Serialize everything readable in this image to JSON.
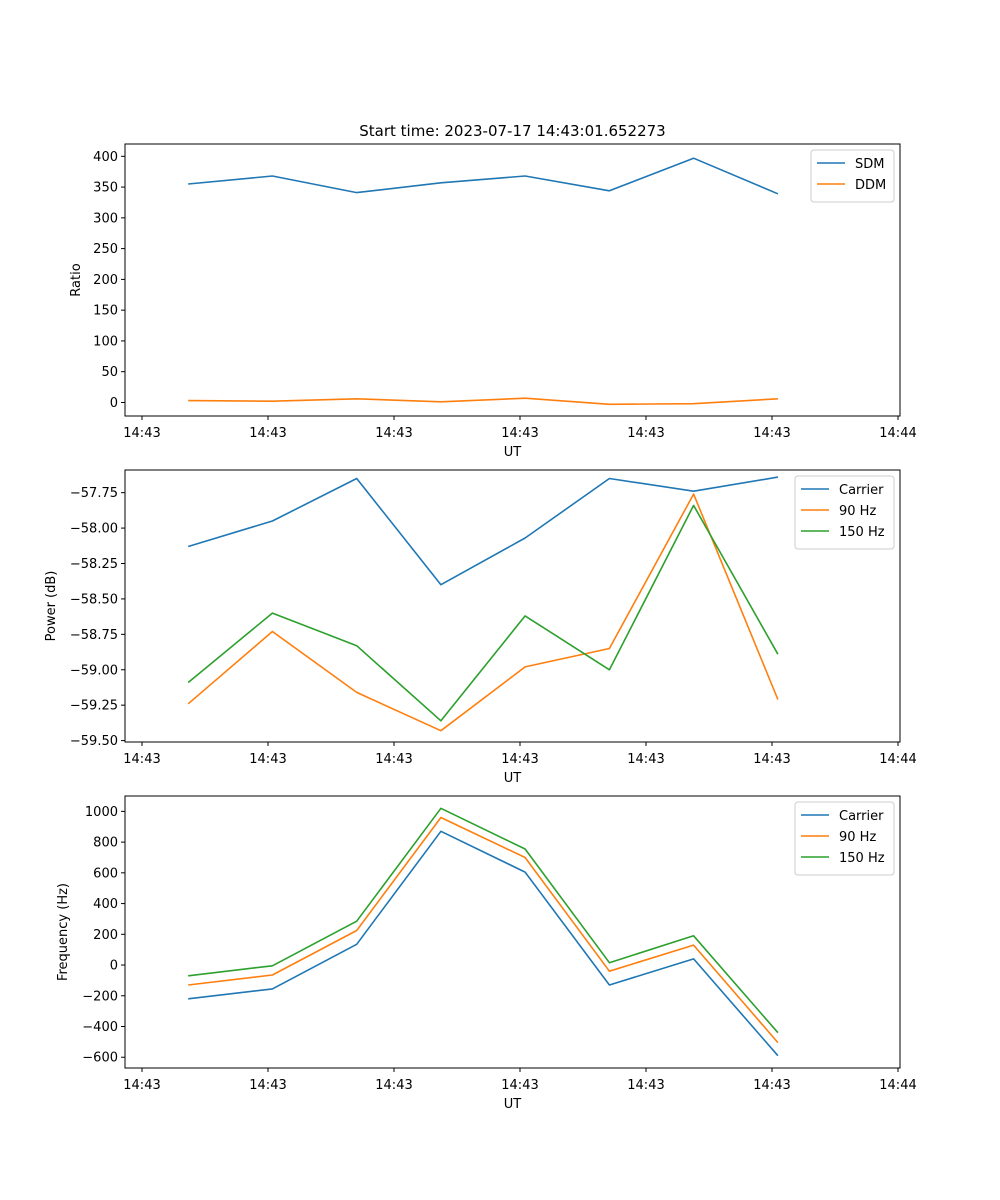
{
  "chart_data": [
    {
      "type": "line",
      "title": "Start time: 2023-07-17 14:43:01.652273",
      "xlabel": "UT",
      "ylabel": "Ratio",
      "x_tick_labels": [
        "14:43",
        "14:43",
        "14:43",
        "14:43",
        "14:43",
        "14:43",
        "14:44"
      ],
      "x_sample_index": [
        0,
        1,
        2,
        3,
        4,
        5,
        6,
        7
      ],
      "xlim": [
        -0.75,
        8.45
      ],
      "ylim": [
        -22,
        420
      ],
      "y_ticks": [
        0,
        50,
        100,
        150,
        200,
        250,
        300,
        350,
        400
      ],
      "legend_position": "top-right",
      "series": [
        {
          "name": "SDM",
          "color": "#1f77b4",
          "values": [
            355,
            368,
            341,
            357,
            368,
            344,
            397,
            339
          ]
        },
        {
          "name": "DDM",
          "color": "#ff7f0e",
          "values": [
            3,
            2,
            6,
            1,
            7,
            -3,
            -2,
            6
          ]
        }
      ]
    },
    {
      "type": "line",
      "title": "",
      "xlabel": "UT",
      "ylabel": "Power (dB)",
      "x_tick_labels": [
        "14:43",
        "14:43",
        "14:43",
        "14:43",
        "14:43",
        "14:43",
        "14:44"
      ],
      "x_sample_index": [
        0,
        1,
        2,
        3,
        4,
        5,
        6,
        7
      ],
      "xlim": [
        -0.75,
        8.45
      ],
      "ylim": [
        -59.51,
        -57.59
      ],
      "y_ticks": [
        -59.5,
        -59.25,
        -59.0,
        -58.75,
        -58.5,
        -58.25,
        -58.0,
        -57.75
      ],
      "y_tick_labels": [
        "−59.50",
        "−59.25",
        "−59.00",
        "−58.75",
        "−58.50",
        "−58.25",
        "−58.00",
        "−57.75"
      ],
      "legend_position": "top-right",
      "series": [
        {
          "name": "Carrier",
          "color": "#1f77b4",
          "values": [
            -58.13,
            -57.95,
            -57.65,
            -58.4,
            -58.07,
            -57.65,
            -57.74,
            -57.64
          ]
        },
        {
          "name": "90 Hz",
          "color": "#ff7f0e",
          "values": [
            -59.24,
            -58.73,
            -59.16,
            -59.43,
            -58.98,
            -58.85,
            -57.76,
            -59.21
          ]
        },
        {
          "name": "150 Hz",
          "color": "#2ca02c",
          "values": [
            -59.09,
            -58.6,
            -58.83,
            -59.36,
            -58.62,
            -59.0,
            -57.84,
            -58.89
          ]
        }
      ]
    },
    {
      "type": "line",
      "title": "",
      "xlabel": "UT",
      "ylabel": "Frequency (Hz)",
      "x_tick_labels": [
        "14:43",
        "14:43",
        "14:43",
        "14:43",
        "14:43",
        "14:43",
        "14:44"
      ],
      "x_sample_index": [
        0,
        1,
        2,
        3,
        4,
        5,
        6,
        7
      ],
      "xlim": [
        -0.75,
        8.45
      ],
      "ylim": [
        -670,
        1100
      ],
      "y_ticks": [
        -600,
        -400,
        -200,
        0,
        200,
        400,
        600,
        800,
        1000
      ],
      "y_tick_labels": [
        "−600",
        "−400",
        "−200",
        "0",
        "200",
        "400",
        "600",
        "800",
        "1000"
      ],
      "legend_position": "top-right",
      "series": [
        {
          "name": "Carrier",
          "color": "#1f77b4",
          "values": [
            -220,
            -155,
            135,
            870,
            605,
            -130,
            40,
            -590
          ]
        },
        {
          "name": "90 Hz",
          "color": "#ff7f0e",
          "values": [
            -130,
            -65,
            225,
            960,
            700,
            -40,
            130,
            -505
          ]
        },
        {
          "name": "150 Hz",
          "color": "#2ca02c",
          "values": [
            -70,
            -5,
            285,
            1020,
            755,
            15,
            190,
            -440
          ]
        }
      ]
    }
  ]
}
